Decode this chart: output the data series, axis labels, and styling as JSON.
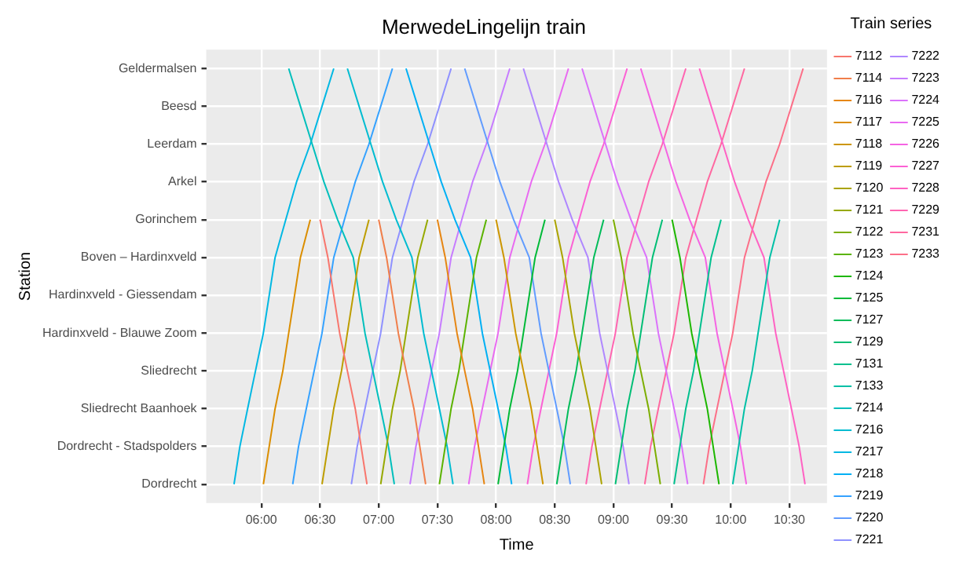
{
  "chart_data": {
    "type": "line",
    "orientation": "horizontal",
    "title": "MerwedeLingelijn train",
    "xlabel": "Time",
    "ylabel": "Station",
    "legend_title": "Train series",
    "legend": "right",
    "grid": true,
    "marker": "none",
    "line_style": "solid",
    "categories": [
      "Geldermalsen",
      "Beesd",
      "Leerdam",
      "Arkel",
      "Gorinchem",
      "Boven – Hardinxveld",
      "Hardinxveld - Giessendam",
      "Hardinxveld - Blauwe Zoom",
      "Sliedrecht",
      "Sliedrecht Baanhoek",
      "Dordrecht - Stadspolders",
      "Dordrecht"
    ],
    "xlim": [
      5.53,
      10.82
    ],
    "xticks": [
      {
        "value": 6,
        "label": "06:00"
      },
      {
        "value": 6.5,
        "label": "06:30"
      },
      {
        "value": 7,
        "label": "07:00"
      },
      {
        "value": 7.5,
        "label": "07:30"
      },
      {
        "value": 8,
        "label": "08:00"
      },
      {
        "value": 8.5,
        "label": "08:30"
      },
      {
        "value": 9,
        "label": "09:00"
      },
      {
        "value": 9.5,
        "label": "09:30"
      },
      {
        "value": 10,
        "label": "10:00"
      },
      {
        "value": 10.5,
        "label": "10:30"
      }
    ],
    "series": [
      {
        "name": "7112",
        "color": "#f8766d",
        "values": [
          null,
          null,
          null,
          null,
          6.5,
          6.567,
          6.617,
          6.667,
          6.733,
          6.8,
          6.85,
          6.9
        ]
      },
      {
        "name": "7114",
        "color": "#f07e4a",
        "values": [
          null,
          null,
          null,
          null,
          7.0,
          7.067,
          7.117,
          7.167,
          7.233,
          7.3,
          7.35,
          7.4
        ]
      },
      {
        "name": "7116",
        "color": "#e68613",
        "values": [
          null,
          null,
          null,
          null,
          7.5,
          7.567,
          7.617,
          7.667,
          7.733,
          7.8,
          7.85,
          7.9
        ]
      },
      {
        "name": "7117",
        "color": "#db8e00",
        "values": [
          null,
          null,
          null,
          null,
          6.417,
          6.333,
          6.283,
          6.233,
          6.183,
          6.117,
          6.067,
          6.017
        ]
      },
      {
        "name": "7118",
        "color": "#cd9600",
        "values": [
          null,
          null,
          null,
          null,
          8.0,
          8.067,
          8.117,
          8.167,
          8.233,
          8.3,
          8.35,
          8.4
        ]
      },
      {
        "name": "7119",
        "color": "#bd9d00",
        "values": [
          null,
          null,
          null,
          null,
          6.917,
          6.833,
          6.783,
          6.733,
          6.683,
          6.617,
          6.567,
          6.517
        ]
      },
      {
        "name": "7120",
        "color": "#aba300",
        "values": [
          null,
          null,
          null,
          null,
          8.5,
          8.567,
          8.617,
          8.667,
          8.733,
          8.8,
          8.85,
          8.9
        ]
      },
      {
        "name": "7121",
        "color": "#96a900",
        "values": [
          null,
          null,
          null,
          null,
          7.417,
          7.333,
          7.283,
          7.233,
          7.183,
          7.117,
          7.067,
          7.017
        ]
      },
      {
        "name": "7122",
        "color": "#7cae00",
        "values": [
          null,
          null,
          null,
          null,
          9.0,
          9.067,
          9.117,
          9.167,
          9.233,
          9.3,
          9.35,
          9.4
        ]
      },
      {
        "name": "7123",
        "color": "#5bb300",
        "values": [
          null,
          null,
          null,
          null,
          7.917,
          7.833,
          7.783,
          7.733,
          7.683,
          7.617,
          7.567,
          7.517
        ]
      },
      {
        "name": "7124",
        "color": "#1db700",
        "values": [
          null,
          null,
          null,
          null,
          9.5,
          9.567,
          9.617,
          9.667,
          9.733,
          9.8,
          9.85,
          9.9
        ]
      },
      {
        "name": "7125",
        "color": "#00ba38",
        "values": [
          null,
          null,
          null,
          null,
          8.417,
          8.333,
          8.283,
          8.233,
          8.183,
          8.117,
          8.067,
          8.017
        ]
      },
      {
        "name": "7127",
        "color": "#00bc59",
        "values": [
          null,
          null,
          null,
          null,
          8.917,
          8.833,
          8.783,
          8.733,
          8.683,
          8.617,
          8.567,
          8.517
        ]
      },
      {
        "name": "7129",
        "color": "#00be75",
        "values": [
          null,
          null,
          null,
          null,
          9.417,
          9.333,
          9.283,
          9.233,
          9.183,
          9.117,
          9.067,
          9.017
        ]
      },
      {
        "name": "7131",
        "color": "#00c08e",
        "values": [
          null,
          null,
          null,
          null,
          9.917,
          9.833,
          9.783,
          9.733,
          9.683,
          9.617,
          9.567,
          9.517
        ]
      },
      {
        "name": "7133",
        "color": "#00c0a6",
        "values": [
          null,
          null,
          null,
          null,
          10.417,
          10.333,
          10.283,
          10.233,
          10.183,
          10.117,
          10.067,
          10.017
        ]
      },
      {
        "name": "7214",
        "color": "#00bfbc",
        "values": [
          6.233,
          6.333,
          6.433,
          6.533,
          6.65,
          6.783,
          6.833,
          6.883,
          6.95,
          7.017,
          7.083,
          7.133
        ]
      },
      {
        "name": "7216",
        "color": "#00bcd1",
        "values": [
          6.733,
          6.833,
          6.933,
          7.033,
          7.15,
          7.283,
          7.333,
          7.383,
          7.45,
          7.517,
          7.583,
          7.633
        ]
      },
      {
        "name": "7217",
        "color": "#00b8e3",
        "values": [
          6.617,
          6.517,
          6.417,
          6.3,
          6.208,
          6.117,
          6.067,
          6.017,
          5.95,
          5.883,
          5.817,
          5.767
        ]
      },
      {
        "name": "7218",
        "color": "#00b0f4",
        "values": [
          7.233,
          7.333,
          7.433,
          7.533,
          7.65,
          7.783,
          7.833,
          7.883,
          7.95,
          8.017,
          8.083,
          8.133
        ]
      },
      {
        "name": "7219",
        "color": "#35a2ff",
        "values": [
          7.117,
          7.017,
          6.917,
          6.8,
          6.708,
          6.617,
          6.567,
          6.517,
          6.45,
          6.383,
          6.317,
          6.267
        ]
      },
      {
        "name": "7220",
        "color": "#619cff",
        "values": [
          7.733,
          7.833,
          7.933,
          8.033,
          8.15,
          8.283,
          8.333,
          8.383,
          8.45,
          8.517,
          8.583,
          8.633
        ]
      },
      {
        "name": "7221",
        "color": "#8f91ff",
        "values": [
          7.617,
          7.517,
          7.417,
          7.3,
          7.208,
          7.117,
          7.067,
          7.017,
          6.95,
          6.883,
          6.817,
          6.767
        ]
      },
      {
        "name": "7222",
        "color": "#af87ff",
        "values": [
          8.233,
          8.333,
          8.433,
          8.533,
          8.65,
          8.783,
          8.833,
          8.883,
          8.95,
          9.017,
          9.083,
          9.133
        ]
      },
      {
        "name": "7223",
        "color": "#c77cff",
        "values": [
          8.117,
          8.017,
          7.917,
          7.8,
          7.708,
          7.617,
          7.567,
          7.517,
          7.45,
          7.383,
          7.317,
          7.267
        ]
      },
      {
        "name": "7224",
        "color": "#db72fb",
        "values": [
          8.733,
          8.833,
          8.933,
          9.033,
          9.15,
          9.283,
          9.333,
          9.383,
          9.45,
          9.517,
          9.583,
          9.633
        ]
      },
      {
        "name": "7225",
        "color": "#e96af1",
        "values": [
          8.617,
          8.517,
          8.417,
          8.3,
          8.208,
          8.117,
          8.067,
          8.017,
          7.95,
          7.883,
          7.817,
          7.767
        ]
      },
      {
        "name": "7226",
        "color": "#f564e3",
        "values": [
          9.233,
          9.333,
          9.433,
          9.533,
          9.65,
          9.783,
          9.833,
          9.883,
          9.95,
          10.017,
          10.083,
          10.133
        ]
      },
      {
        "name": "7227",
        "color": "#fc61d4",
        "values": [
          9.117,
          9.017,
          8.917,
          8.8,
          8.708,
          8.617,
          8.567,
          8.517,
          8.45,
          8.383,
          8.317,
          8.267
        ]
      },
      {
        "name": "7228",
        "color": "#ff62c3",
        "values": [
          9.733,
          9.833,
          9.933,
          10.033,
          10.15,
          10.283,
          10.333,
          10.383,
          10.45,
          10.517,
          10.583,
          10.633
        ]
      },
      {
        "name": "7229",
        "color": "#ff65b1",
        "values": [
          9.617,
          9.517,
          9.417,
          9.3,
          9.208,
          9.117,
          9.067,
          9.017,
          8.95,
          8.883,
          8.817,
          8.767
        ]
      },
      {
        "name": "7231",
        "color": "#ff68a0",
        "values": [
          10.117,
          10.017,
          9.917,
          9.8,
          9.708,
          9.617,
          9.567,
          9.517,
          9.45,
          9.383,
          9.317,
          9.267
        ]
      },
      {
        "name": "7233",
        "color": "#fc6f88",
        "values": [
          10.617,
          10.517,
          10.417,
          10.3,
          10.208,
          10.117,
          10.067,
          10.017,
          9.95,
          9.883,
          9.817,
          9.767
        ]
      }
    ]
  }
}
